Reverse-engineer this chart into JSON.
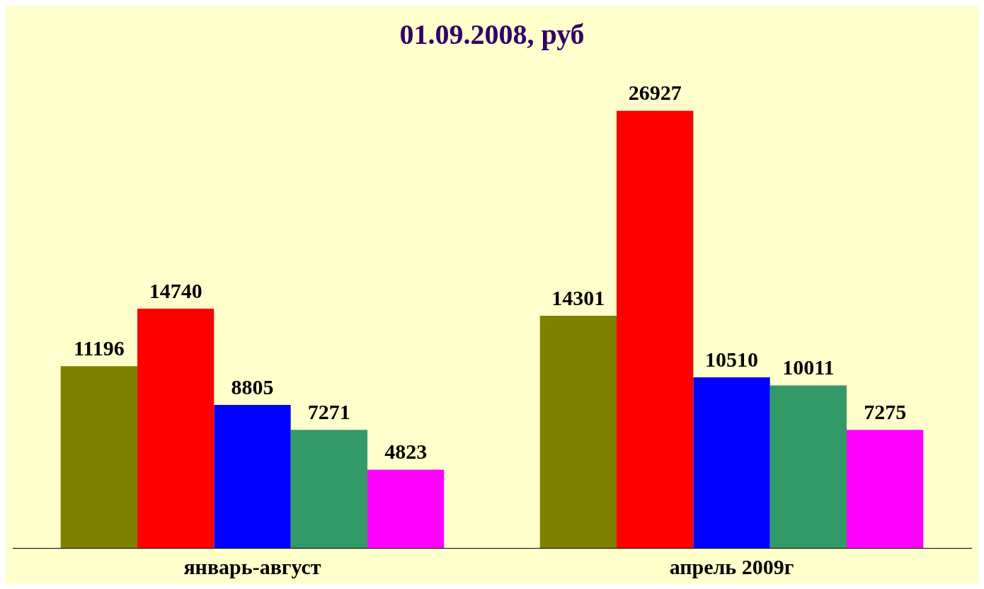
{
  "chart_data": {
    "type": "bar",
    "title": "01.09.2008, руб",
    "categories": [
      "январь-август",
      "апрель 2009г"
    ],
    "series": [
      {
        "color": "#808000",
        "values": [
          11196,
          14301
        ]
      },
      {
        "color": "#ff0000",
        "values": [
          14740,
          26927
        ]
      },
      {
        "color": "#0000ff",
        "values": [
          8805,
          10510
        ]
      },
      {
        "color": "#339966",
        "values": [
          7271,
          10011
        ]
      },
      {
        "color": "#ff00ff",
        "values": [
          4823,
          7275
        ]
      }
    ],
    "data_labels": true,
    "grid": false,
    "legend": false
  }
}
